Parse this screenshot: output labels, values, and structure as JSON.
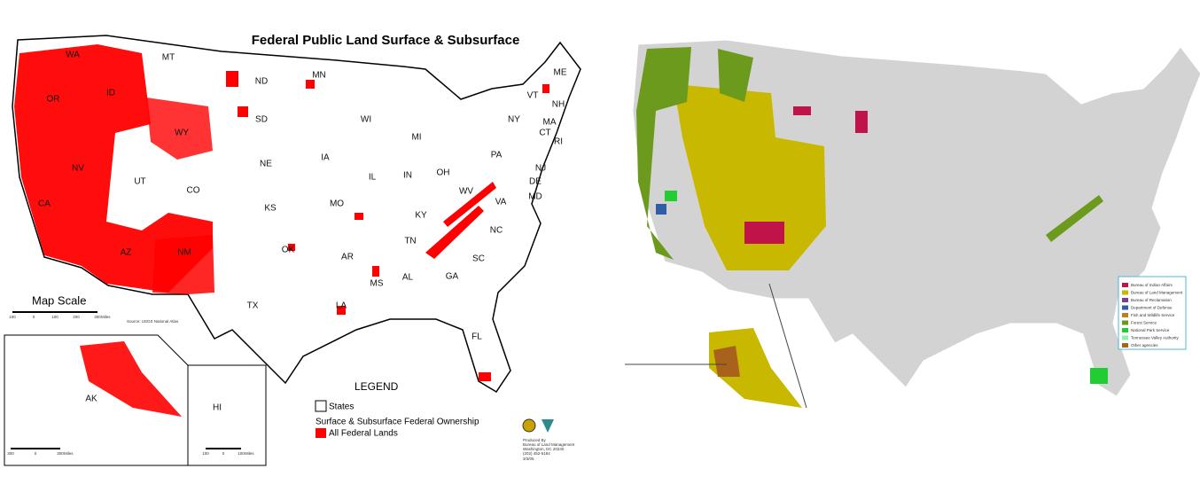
{
  "left_map": {
    "title": "Federal Public Land Surface & Subsurface",
    "states": [
      "WA",
      "OR",
      "ID",
      "MT",
      "ND",
      "SD",
      "MN",
      "WI",
      "MI",
      "NY",
      "VT",
      "NH",
      "ME",
      "MA",
      "CT",
      "RI",
      "NJ",
      "PA",
      "DE",
      "MD",
      "OH",
      "IN",
      "IL",
      "IA",
      "NE",
      "WY",
      "NV",
      "UT",
      "CO",
      "CA",
      "KS",
      "MO",
      "KY",
      "WV",
      "VA",
      "NC",
      "TN",
      "AR",
      "OK",
      "NM",
      "AZ",
      "TX",
      "LA",
      "MS",
      "AL",
      "GA",
      "SC",
      "FL",
      "AK",
      "HI"
    ],
    "scale": {
      "title": "Map Scale",
      "labels": [
        "100",
        "0",
        "100",
        "200",
        "300",
        "Miles"
      ]
    },
    "source": "Source: USGS National Atlas",
    "alaska_scale": [
      "300",
      "0",
      "300",
      "Miles"
    ],
    "hawaii_scale": [
      "100",
      "0",
      "100",
      "Miles"
    ],
    "legend": {
      "title": "LEGEND",
      "states": "States",
      "subtitle": "Surface & Subsurface Federal Ownership",
      "federal": "All Federal Lands",
      "color": "#ff0000"
    },
    "credit": [
      "Produced By",
      "Bureau of Land Management",
      "Washington, DC 20240",
      "(202) 452-5184"
    ],
    "date": "3/3/05"
  },
  "right_map": {
    "legend": [
      {
        "label": "Bureau of Indian Affairs",
        "color": "#c0134a"
      },
      {
        "label": "Bureau of Land Management",
        "color": "#c9b800"
      },
      {
        "label": "Bureau of Reclamation",
        "color": "#7b3f8c"
      },
      {
        "label": "Department of Defense",
        "color": "#2e5fa6"
      },
      {
        "label": "Fish and Wildlife Service",
        "color": "#c87b1e"
      },
      {
        "label": "Forest Service",
        "color": "#6b9a1c"
      },
      {
        "label": "National Park Service",
        "color": "#22cc33"
      },
      {
        "label": "Tennessee Valley Authority",
        "color": "#8ef0b0"
      },
      {
        "label": "Other agencies",
        "color": "#a8621c"
      }
    ]
  }
}
